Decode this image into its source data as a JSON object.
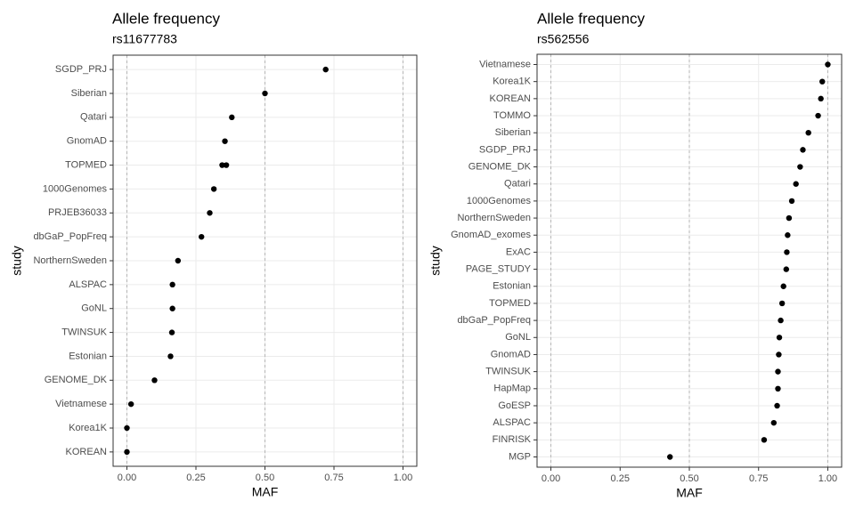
{
  "chart_data": [
    {
      "type": "dot",
      "title": "Allele frequency",
      "subtitle": "rs11677783",
      "x_label": "MAF",
      "y_label": "study",
      "categories": [
        "SGDP_PRJ",
        "Siberian",
        "Qatari",
        "GnomAD",
        "TOPMED",
        "1000Genomes",
        "PRJEB36033",
        "dbGaP_PopFreq",
        "NorthernSweden",
        "ALSPAC",
        "GoNL",
        "TWINSUK",
        "Estonian",
        "GENOME_DK",
        "Vietnamese",
        "Korea1K",
        "KOREAN"
      ],
      "values": [
        [
          0.72
        ],
        [
          0.5
        ],
        [
          0.38
        ],
        [
          0.355
        ],
        [
          0.345,
          0.36
        ],
        [
          0.315
        ],
        [
          0.3
        ],
        [
          0.27
        ],
        [
          0.185
        ],
        [
          0.165
        ],
        [
          0.165
        ],
        [
          0.163
        ],
        [
          0.158
        ],
        [
          0.1
        ],
        [
          0.015
        ],
        [
          0.0
        ],
        [
          0.0
        ]
      ],
      "color": "#000000",
      "xlim": [
        -0.05,
        1.05
      ],
      "xticks": [
        {
          "value": 0,
          "label": "0.00"
        },
        {
          "value": 0.25,
          "label": "0.25"
        },
        {
          "value": 0.5,
          "label": "0.50"
        },
        {
          "value": 0.75,
          "label": "0.75"
        },
        {
          "value": 1,
          "label": "1.00"
        }
      ],
      "reference_lines": [
        0,
        0.5,
        1
      ],
      "grid": true
    },
    {
      "type": "dot",
      "title": "Allele frequency",
      "subtitle": "rs562556",
      "x_label": "MAF",
      "y_label": "study",
      "categories": [
        "Vietnamese",
        "Korea1K",
        "KOREAN",
        "TOMMO",
        "Siberian",
        "SGDP_PRJ",
        "GENOME_DK",
        "Qatari",
        "1000Genomes",
        "NorthernSweden",
        "GnomAD_exomes",
        "ExAC",
        "PAGE_STUDY",
        "Estonian",
        "TOPMED",
        "dbGaP_PopFreq",
        "GoNL",
        "GnomAD",
        "TWINSUK",
        "HapMap",
        "GoESP",
        "ALSPAC",
        "FINRISK",
        "MGP"
      ],
      "values": [
        [
          1.0
        ],
        [
          0.98
        ],
        [
          0.975
        ],
        [
          0.965
        ],
        [
          0.93
        ],
        [
          0.91
        ],
        [
          0.9
        ],
        [
          0.885
        ],
        [
          0.87
        ],
        [
          0.86
        ],
        [
          0.855
        ],
        [
          0.852
        ],
        [
          0.85
        ],
        [
          0.84
        ],
        [
          0.835
        ],
        [
          0.83
        ],
        [
          0.825
        ],
        [
          0.823
        ],
        [
          0.82
        ],
        [
          0.82
        ],
        [
          0.817
        ],
        [
          0.805
        ],
        [
          0.77
        ],
        [
          0.43
        ]
      ],
      "color": "#000000",
      "xlim": [
        -0.05,
        1.05
      ],
      "xticks": [
        {
          "value": 0,
          "label": "0.00"
        },
        {
          "value": 0.25,
          "label": "0.25"
        },
        {
          "value": 0.5,
          "label": "0.50"
        },
        {
          "value": 0.75,
          "label": "0.75"
        },
        {
          "value": 1,
          "label": "1.00"
        }
      ],
      "reference_lines": [
        0,
        0.5,
        1
      ],
      "grid": true
    }
  ]
}
